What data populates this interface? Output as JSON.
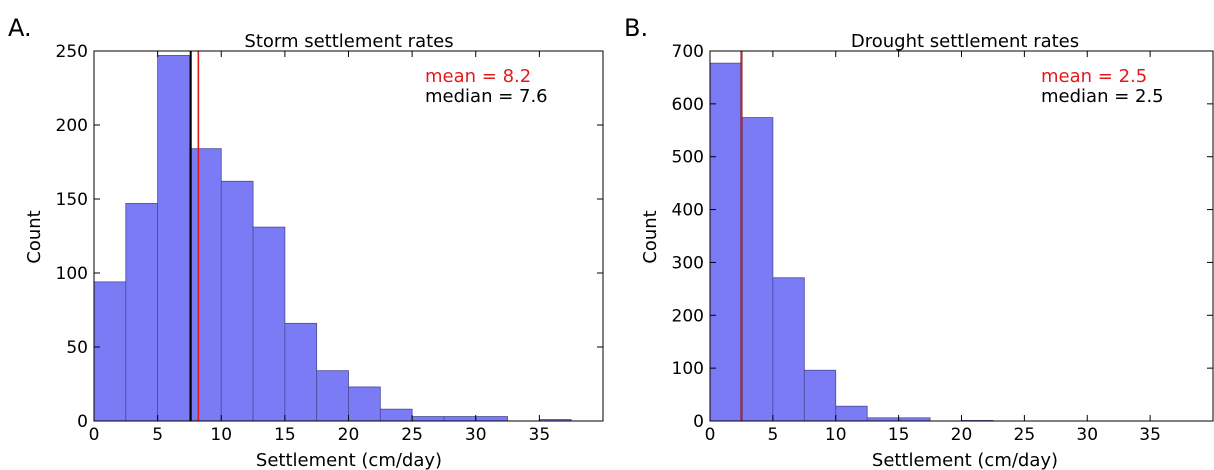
{
  "chart_data": [
    {
      "type": "bar",
      "panel_label": "A.",
      "title": "Storm settlement rates",
      "xlabel": "Settlement (cm/day)",
      "ylabel": "Count",
      "bin_width": 2.5,
      "bin_starts": [
        0,
        2.5,
        5,
        7.5,
        10,
        12.5,
        15,
        17.5,
        20,
        22.5,
        25,
        27.5,
        30,
        32.5,
        35
      ],
      "values": [
        94,
        147,
        247,
        184,
        162,
        131,
        66,
        34,
        23,
        8,
        3,
        3,
        3,
        0,
        1
      ],
      "xlim": [
        0,
        40
      ],
      "ylim": [
        0,
        250
      ],
      "xticks": [
        0,
        5,
        10,
        15,
        20,
        25,
        30,
        35
      ],
      "yticks": [
        0,
        50,
        100,
        150,
        200,
        250
      ],
      "mean": 8.2,
      "median": 7.6,
      "mean_text": "mean = 8.2",
      "median_text": "median = 7.6",
      "colors": {
        "bar": "#7b7bf6",
        "bar_edge": "#4a4a9a",
        "mean": "#e31a1c",
        "median": "#000000"
      },
      "legend_position": "top-right",
      "grid": false
    },
    {
      "type": "bar",
      "panel_label": "B.",
      "title": "Drought settlement rates",
      "xlabel": "Settlement (cm/day)",
      "ylabel": "Count",
      "bin_width": 2.5,
      "bin_starts": [
        0,
        2.5,
        5,
        7.5,
        10,
        12.5,
        15,
        17.5,
        20,
        22.5,
        25,
        27.5,
        30,
        32.5,
        35
      ],
      "values": [
        677,
        574,
        271,
        96,
        28,
        6,
        6,
        0,
        1,
        0,
        0,
        0,
        0,
        0,
        0
      ],
      "xlim": [
        0,
        40
      ],
      "ylim": [
        0,
        700
      ],
      "xticks": [
        0,
        5,
        10,
        15,
        20,
        25,
        30,
        35
      ],
      "yticks": [
        0,
        100,
        200,
        300,
        400,
        500,
        600,
        700
      ],
      "mean": 2.5,
      "median": 2.5,
      "mean_text": "mean = 2.5",
      "median_text": "median = 2.5",
      "colors": {
        "bar": "#7b7bf6",
        "bar_edge": "#4a4a9a",
        "mean": "#e31a1c",
        "median": "#000000"
      },
      "legend_position": "top-right",
      "grid": false
    }
  ]
}
